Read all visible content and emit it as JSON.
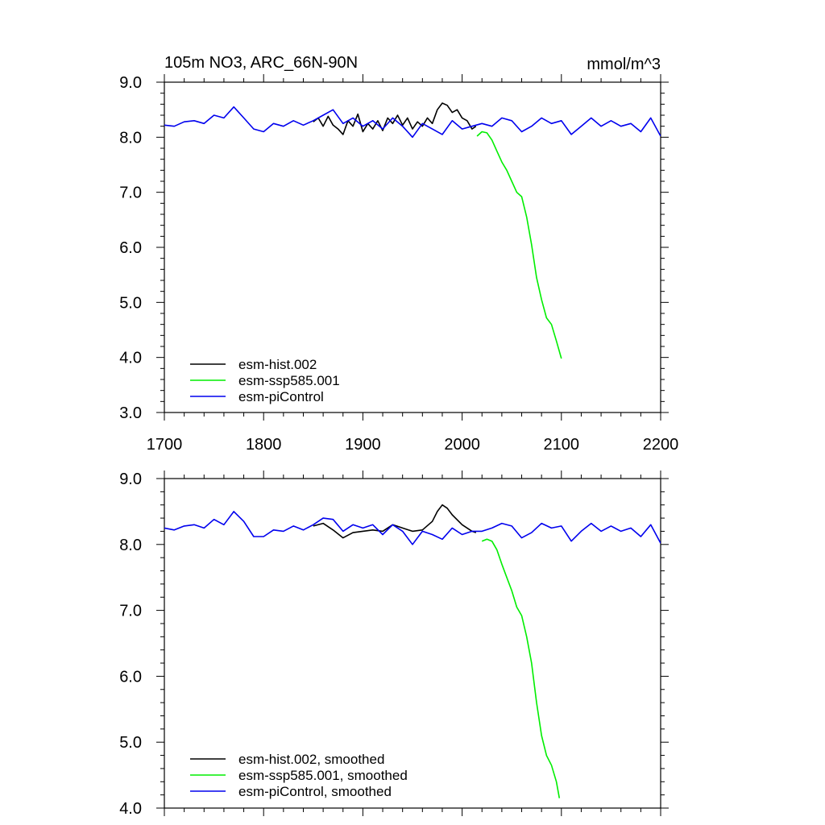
{
  "colors": {
    "hist": "#000000",
    "ssp": "#00ee00",
    "pi": "#0000ee",
    "axis": "#000000"
  },
  "chart_data": [
    {
      "type": "line",
      "title": "105m NO3, ARC_66N-90N",
      "units": "mmol/m^3",
      "xlabel": "",
      "ylabel": "",
      "xlim": [
        1700,
        2200
      ],
      "ylim": [
        3.0,
        9.0
      ],
      "xticks": [
        "1700",
        "1800",
        "1900",
        "2000",
        "2100",
        "2200"
      ],
      "yticks": [
        "3.0",
        "4.0",
        "5.0",
        "6.0",
        "7.0",
        "8.0",
        "9.0"
      ],
      "grid": false,
      "legend_position": "bottom-left",
      "series": [
        {
          "name": "esm-hist.002",
          "color_key": "hist",
          "x": [
            1850,
            1855,
            1860,
            1865,
            1870,
            1875,
            1880,
            1885,
            1890,
            1895,
            1900,
            1905,
            1910,
            1915,
            1920,
            1925,
            1930,
            1935,
            1940,
            1945,
            1950,
            1955,
            1960,
            1965,
            1970,
            1975,
            1980,
            1985,
            1990,
            1995,
            2000,
            2005,
            2010,
            2014
          ],
          "y": [
            8.28,
            8.35,
            8.2,
            8.38,
            8.22,
            8.15,
            8.05,
            8.3,
            8.2,
            8.42,
            8.1,
            8.25,
            8.15,
            8.3,
            8.12,
            8.35,
            8.25,
            8.4,
            8.22,
            8.35,
            8.15,
            8.28,
            8.2,
            8.35,
            8.25,
            8.5,
            8.62,
            8.58,
            8.45,
            8.5,
            8.35,
            8.3,
            8.15,
            8.2
          ]
        },
        {
          "name": "esm-ssp585.001",
          "color_key": "ssp",
          "x": [
            2015,
            2020,
            2025,
            2030,
            2035,
            2040,
            2045,
            2050,
            2055,
            2060,
            2065,
            2070,
            2075,
            2080,
            2085,
            2090,
            2095,
            2100
          ],
          "y": [
            8.02,
            8.1,
            8.08,
            7.95,
            7.75,
            7.55,
            7.4,
            7.2,
            7.0,
            6.92,
            6.55,
            6.05,
            5.45,
            5.05,
            4.72,
            4.6,
            4.3,
            3.98
          ]
        },
        {
          "name": "esm-piControl",
          "color_key": "pi",
          "x": [
            1700,
            1710,
            1720,
            1730,
            1740,
            1750,
            1760,
            1770,
            1780,
            1790,
            1800,
            1810,
            1820,
            1830,
            1840,
            1850,
            1860,
            1870,
            1880,
            1890,
            1900,
            1910,
            1920,
            1930,
            1940,
            1950,
            1960,
            1970,
            1980,
            1990,
            2000,
            2010,
            2020,
            2030,
            2040,
            2050,
            2060,
            2070,
            2080,
            2090,
            2100,
            2110,
            2120,
            2130,
            2140,
            2150,
            2160,
            2170,
            2180,
            2190,
            2200
          ],
          "y": [
            8.22,
            8.2,
            8.28,
            8.3,
            8.25,
            8.4,
            8.35,
            8.55,
            8.35,
            8.15,
            8.1,
            8.25,
            8.2,
            8.3,
            8.22,
            8.3,
            8.4,
            8.5,
            8.25,
            8.35,
            8.2,
            8.3,
            8.15,
            8.35,
            8.2,
            8.0,
            8.25,
            8.15,
            8.05,
            8.3,
            8.15,
            8.2,
            8.25,
            8.2,
            8.35,
            8.3,
            8.1,
            8.2,
            8.35,
            8.25,
            8.3,
            8.05,
            8.2,
            8.35,
            8.2,
            8.3,
            8.2,
            8.25,
            8.1,
            8.35,
            8.02
          ]
        }
      ]
    },
    {
      "type": "line",
      "title": "",
      "xlabel": "",
      "ylabel": "",
      "xlim": [
        1700,
        2200
      ],
      "ylim": [
        4.0,
        9.0
      ],
      "xticks": [],
      "yticks": [
        "4.0",
        "5.0",
        "6.0",
        "7.0",
        "8.0",
        "9.0"
      ],
      "grid": false,
      "legend_position": "bottom-left",
      "series": [
        {
          "name": "esm-hist.002, smoothed",
          "color_key": "hist",
          "x": [
            1850,
            1860,
            1870,
            1880,
            1890,
            1900,
            1910,
            1920,
            1930,
            1940,
            1950,
            1960,
            1970,
            1975,
            1980,
            1985,
            1990,
            2000,
            2010,
            2014
          ],
          "y": [
            8.28,
            8.32,
            8.22,
            8.1,
            8.18,
            8.2,
            8.22,
            8.2,
            8.3,
            8.25,
            8.2,
            8.22,
            8.35,
            8.5,
            8.6,
            8.55,
            8.45,
            8.3,
            8.2,
            8.18
          ]
        },
        {
          "name": "esm-ssp585.001, smoothed",
          "color_key": "ssp",
          "x": [
            2020,
            2025,
            2030,
            2035,
            2040,
            2045,
            2050,
            2055,
            2060,
            2065,
            2070,
            2075,
            2080,
            2085,
            2090,
            2095,
            2098
          ],
          "y": [
            8.05,
            8.08,
            8.05,
            7.92,
            7.7,
            7.5,
            7.3,
            7.05,
            6.92,
            6.6,
            6.2,
            5.6,
            5.1,
            4.8,
            4.65,
            4.4,
            4.15
          ]
        },
        {
          "name": "esm-piControl, smoothed",
          "color_key": "pi",
          "x": [
            1700,
            1710,
            1720,
            1730,
            1740,
            1750,
            1760,
            1770,
            1780,
            1790,
            1800,
            1810,
            1820,
            1830,
            1840,
            1850,
            1860,
            1870,
            1880,
            1890,
            1900,
            1910,
            1920,
            1930,
            1940,
            1950,
            1960,
            1970,
            1980,
            1990,
            2000,
            2010,
            2020,
            2030,
            2040,
            2050,
            2060,
            2070,
            2080,
            2090,
            2100,
            2110,
            2120,
            2130,
            2140,
            2150,
            2160,
            2170,
            2180,
            2190,
            2200
          ],
          "y": [
            8.25,
            8.22,
            8.28,
            8.3,
            8.25,
            8.38,
            8.3,
            8.5,
            8.35,
            8.12,
            8.12,
            8.22,
            8.2,
            8.28,
            8.22,
            8.3,
            8.4,
            8.38,
            8.2,
            8.3,
            8.25,
            8.3,
            8.15,
            8.3,
            8.2,
            8.0,
            8.2,
            8.15,
            8.08,
            8.25,
            8.15,
            8.2,
            8.2,
            8.25,
            8.32,
            8.28,
            8.1,
            8.18,
            8.32,
            8.25,
            8.28,
            8.05,
            8.2,
            8.32,
            8.2,
            8.28,
            8.2,
            8.25,
            8.12,
            8.3,
            8.02
          ]
        }
      ]
    }
  ]
}
